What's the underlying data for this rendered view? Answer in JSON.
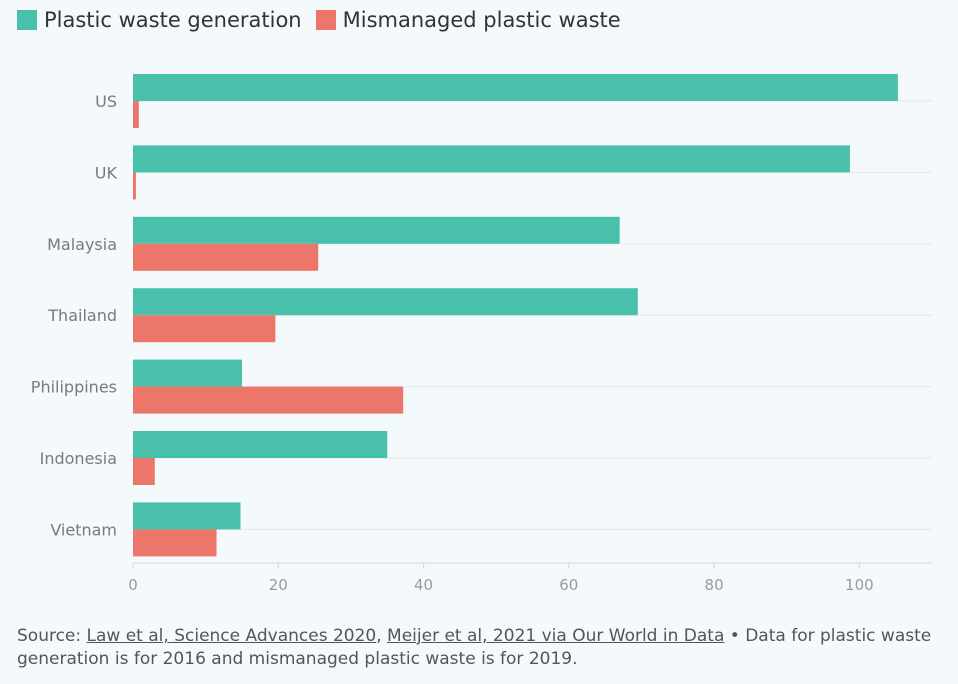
{
  "chart_data": {
    "type": "bar",
    "orientation": "horizontal",
    "categories": [
      "US",
      "UK",
      "Malaysia",
      "Thailand",
      "Philippines",
      "Indonesia",
      "Vietnam"
    ],
    "series": [
      {
        "name": "Plastic waste generation",
        "color": "#48c0ab",
        "values": [
          105.3,
          98.7,
          67.0,
          69.5,
          15.0,
          35.0,
          14.8
        ]
      },
      {
        "name": "Mismanaged plastic waste",
        "color": "#ec7669",
        "values": [
          0.8,
          0.4,
          25.5,
          19.6,
          37.2,
          3.0,
          11.5
        ]
      }
    ],
    "xlim": [
      0,
      110
    ],
    "xticks": [
      0,
      20,
      40,
      60,
      80,
      100
    ],
    "grid": true,
    "legend_position": "top-left"
  },
  "source": {
    "prefix": "Source: ",
    "link1": "Law et al, Science Advances 2020",
    "separator": ", ",
    "link2": "Meijer et al, 2021 via Our World in Data",
    "note": " • Data for plastic waste generation is for 2016 and mismanaged plastic waste is for 2019."
  }
}
